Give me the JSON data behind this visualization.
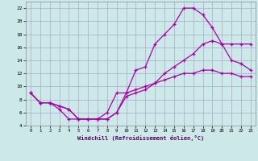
{
  "xlabel": "Windchill (Refroidissement éolien,°C)",
  "bg_color": "#cce8e8",
  "grid_color": "#aaaacc",
  "line_color": "#aa00aa",
  "xlim": [
    -0.5,
    23.5
  ],
  "ylim": [
    4,
    23
  ],
  "xticks": [
    0,
    1,
    2,
    3,
    4,
    5,
    6,
    7,
    8,
    9,
    10,
    11,
    12,
    13,
    14,
    15,
    16,
    17,
    18,
    19,
    20,
    21,
    22,
    23
  ],
  "yticks": [
    4,
    6,
    8,
    10,
    12,
    14,
    16,
    18,
    20,
    22
  ],
  "line1_x": [
    0,
    1,
    2,
    3,
    4,
    5,
    6,
    7,
    8,
    9,
    10,
    11,
    12,
    13,
    14,
    15,
    16,
    17,
    18,
    19,
    20,
    21,
    22,
    23
  ],
  "line1_y": [
    9,
    7.5,
    7.5,
    7,
    6.5,
    5,
    5,
    5,
    5,
    6,
    9,
    12.5,
    13,
    16.5,
    18,
    19.5,
    22,
    22,
    21,
    19,
    16.5,
    14,
    13.5,
    12.5
  ],
  "line2_x": [
    0,
    1,
    2,
    3,
    4,
    5,
    6,
    7,
    8,
    9,
    10,
    11,
    12,
    13,
    14,
    15,
    16,
    17,
    18,
    19,
    20,
    21,
    22,
    23
  ],
  "line2_y": [
    9,
    7.5,
    7.5,
    7,
    6.5,
    5,
    5,
    5,
    5,
    6,
    8.5,
    9,
    9.5,
    10.5,
    12,
    13,
    14,
    15,
    16.5,
    17,
    16.5,
    16.5,
    16.5,
    16.5
  ],
  "line3_x": [
    0,
    1,
    2,
    3,
    4,
    5,
    6,
    7,
    8,
    9,
    10,
    11,
    12,
    13,
    14,
    15,
    16,
    17,
    18,
    19,
    20,
    21,
    22,
    23
  ],
  "line3_y": [
    9,
    7.5,
    7.5,
    6.5,
    5,
    5,
    5,
    5,
    6,
    9,
    9,
    9.5,
    10,
    10.5,
    11,
    11.5,
    12,
    12,
    12.5,
    12.5,
    12,
    12,
    11.5,
    11.5
  ]
}
